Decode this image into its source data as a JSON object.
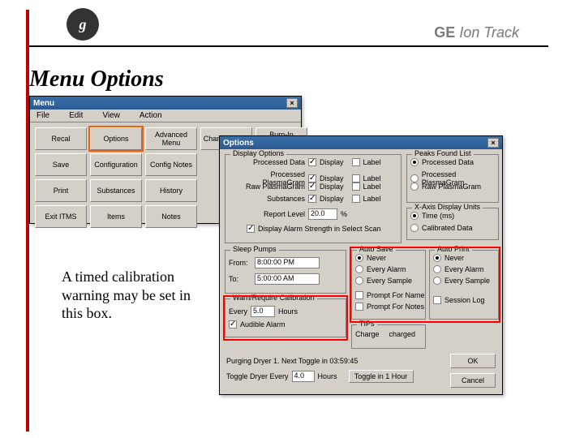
{
  "brand": {
    "ge": "GE",
    "ion": "Ion Track",
    "logo": "g"
  },
  "title": "Menu Options",
  "caption": "A timed calibration warning may be set in this box.",
  "menuWin": {
    "title": "Menu",
    "menus": [
      "File",
      "Edit",
      "View",
      "Action"
    ],
    "buttons": [
      "Recal",
      "Options",
      "Advanced Menu",
      "Change Mode",
      "Burn-In Membrane",
      "Save",
      "Configuration",
      "Config Notes",
      "",
      "",
      "Print",
      "Substances",
      "History",
      "",
      "",
      "Exit ITMS",
      "Items",
      "Notes",
      "",
      ""
    ],
    "highlight": 1
  },
  "optWin": {
    "title": "Options",
    "disp": {
      "legend": "Display Options",
      "rows": [
        {
          "label": "Processed Data",
          "display": true,
          "labelCb": false
        },
        {
          "label": "Processed PlasmaGram",
          "display": true,
          "labelCb": false
        },
        {
          "label": "Raw PlasmaGram",
          "display": true,
          "labelCb": false
        },
        {
          "label": "Substances",
          "display": true,
          "labelCb": false
        }
      ],
      "reportLevel": {
        "label": "Report Level",
        "value": "20.0",
        "unit": "%"
      },
      "alarmStrength": {
        "checked": true,
        "label": "Display Alarm Strength in Select Scan"
      }
    },
    "peaks": {
      "legend": "Peaks Found List",
      "items": [
        {
          "label": "Processed Data",
          "sel": true
        },
        {
          "label": "Processed PlasmaGram",
          "sel": false
        },
        {
          "label": "Raw PlasmaGram",
          "sel": false
        }
      ]
    },
    "xaxis": {
      "legend": "X-Axis Display Units",
      "items": [
        {
          "label": "Time (ms)",
          "sel": true
        },
        {
          "label": "Calibrated Data",
          "sel": false
        }
      ]
    },
    "sleep": {
      "legend": "Sleep Pumps",
      "from": "From:",
      "fromVal": "8:00:00 PM",
      "to": "To:",
      "toVal": "5:00:00 AM"
    },
    "autosave": {
      "legend": "Auto Save",
      "items": [
        {
          "label": "Never",
          "sel": true
        },
        {
          "label": "Every Alarm",
          "sel": false
        },
        {
          "label": "Every Sample",
          "sel": false
        }
      ],
      "prompts": [
        {
          "label": "Prompt For Name",
          "checked": false
        },
        {
          "label": "Prompt For Notes",
          "checked": false
        }
      ]
    },
    "autoprint": {
      "legend": "Auto Print",
      "items": [
        {
          "label": "Never",
          "sel": true
        },
        {
          "label": "Every Alarm",
          "sel": false
        },
        {
          "label": "Every Sample",
          "sel": false
        }
      ],
      "session": {
        "label": "Session Log",
        "checked": false
      }
    },
    "calib": {
      "legend": "Warn/Require Calibration",
      "every": "Every",
      "everyVal": "5.0",
      "hours": "Hours",
      "audible": {
        "label": "Audible Alarm",
        "checked": true
      }
    },
    "tips": {
      "legend": "TIPs",
      "charge": "Charge",
      "val": "charged"
    },
    "purge": "Purging Dryer 1. Next Toggle in 03:59:45",
    "toggle": {
      "label": "Toggle Dryer Every",
      "val": "4.0",
      "hours": "Hours",
      "btn": "Toggle in 1 Hour"
    },
    "ok": "OK",
    "cancel": "Cancel"
  }
}
